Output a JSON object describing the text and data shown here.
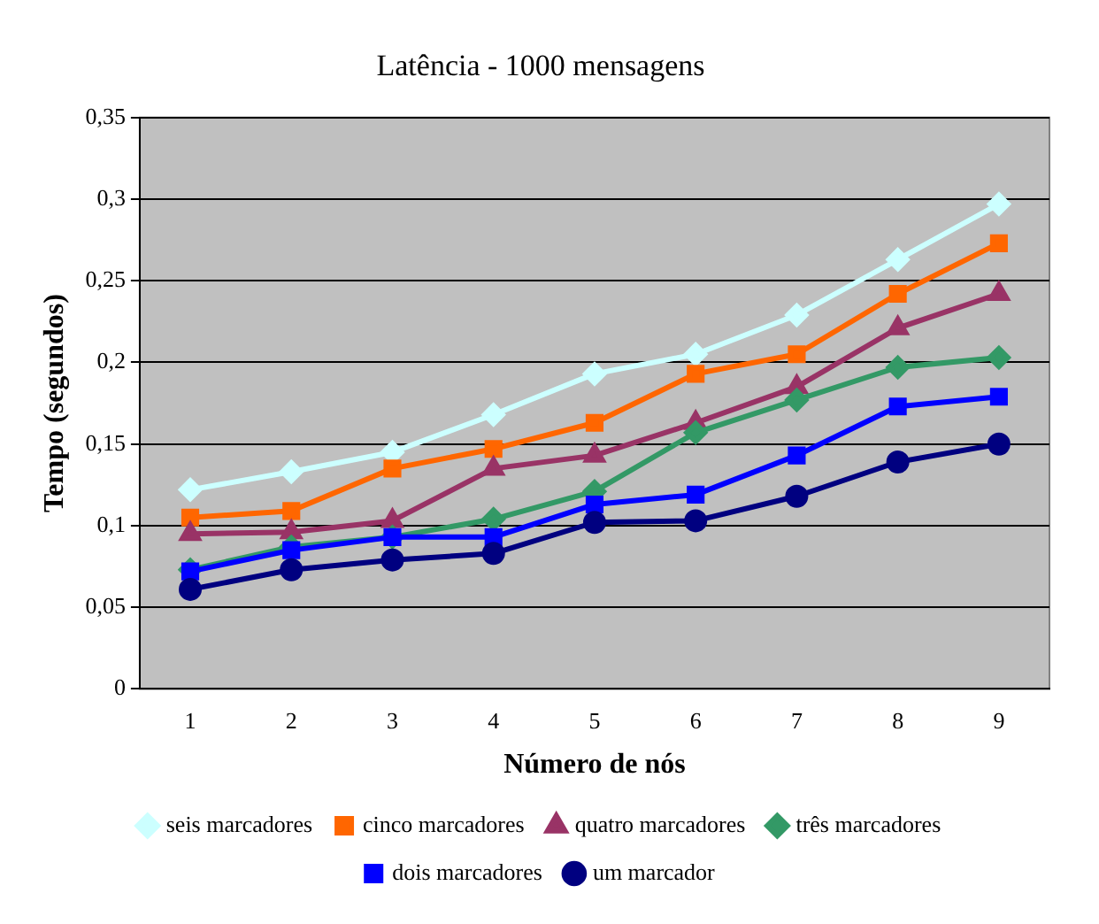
{
  "chart_data": {
    "type": "line",
    "title": "Latência - 1000 mensagens",
    "xlabel": "Número de nós",
    "ylabel": "Tempo (segundos)",
    "categories": [
      "1",
      "2",
      "3",
      "4",
      "5",
      "6",
      "7",
      "8",
      "9"
    ],
    "ylim": [
      0,
      0.35
    ],
    "yticks": [
      {
        "value": 0,
        "label": "0"
      },
      {
        "value": 0.05,
        "label": "0,05"
      },
      {
        "value": 0.1,
        "label": "0,1"
      },
      {
        "value": 0.15,
        "label": "0,15"
      },
      {
        "value": 0.2,
        "label": "0,2"
      },
      {
        "value": 0.25,
        "label": "0,25"
      },
      {
        "value": 0.3,
        "label": "0,3"
      },
      {
        "value": 0.35,
        "label": "0,35"
      }
    ],
    "grid": "y",
    "legend": "bottom",
    "series": [
      {
        "name": "seis marcadores",
        "color": "#ccffff",
        "marker": "diamond",
        "values": [
          0.122,
          0.133,
          0.145,
          0.168,
          0.193,
          0.205,
          0.229,
          0.263,
          0.297
        ]
      },
      {
        "name": "cinco marcadores",
        "color": "#ff6600",
        "marker": "square",
        "values": [
          0.105,
          0.109,
          0.135,
          0.147,
          0.163,
          0.193,
          0.205,
          0.242,
          0.273
        ]
      },
      {
        "name": "quatro marcadores",
        "color": "#993366",
        "marker": "triangle",
        "values": [
          0.095,
          0.096,
          0.103,
          0.135,
          0.143,
          0.163,
          0.185,
          0.221,
          0.242
        ]
      },
      {
        "name": "três marcadores",
        "color": "#339966",
        "marker": "diamond",
        "values": [
          0.073,
          0.087,
          0.093,
          0.104,
          0.121,
          0.157,
          0.177,
          0.197,
          0.203
        ]
      },
      {
        "name": "dois marcadores",
        "color": "#0000ff",
        "marker": "square",
        "values": [
          0.072,
          0.085,
          0.093,
          0.093,
          0.113,
          0.119,
          0.143,
          0.173,
          0.179
        ]
      },
      {
        "name": "um marcador",
        "color": "#000080",
        "marker": "circle",
        "values": [
          0.061,
          0.073,
          0.079,
          0.083,
          0.102,
          0.103,
          0.118,
          0.139,
          0.15
        ]
      }
    ]
  }
}
